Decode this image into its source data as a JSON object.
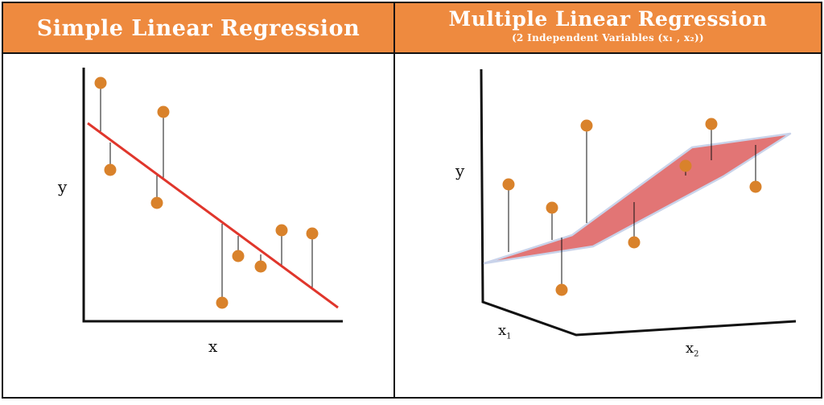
{
  "left_panel": {
    "title": "Simple Linear Regression",
    "y_label": "y",
    "x_label": "x"
  },
  "right_panel": {
    "title": "Multiple Linear Regression",
    "subtitle": "(2 Independent Variables (x₁ , x₂))",
    "y_label": "y",
    "x1_label": "x",
    "x1_sub": "1",
    "x2_label": "x",
    "x2_sub": "2"
  },
  "colors": {
    "header": "#ee8a3f",
    "point": "#d9822b",
    "regression_line": "#e0362c",
    "plane_fill": "#e27575",
    "plane_edge": "#c9d3ea",
    "axis": "#111111"
  }
}
